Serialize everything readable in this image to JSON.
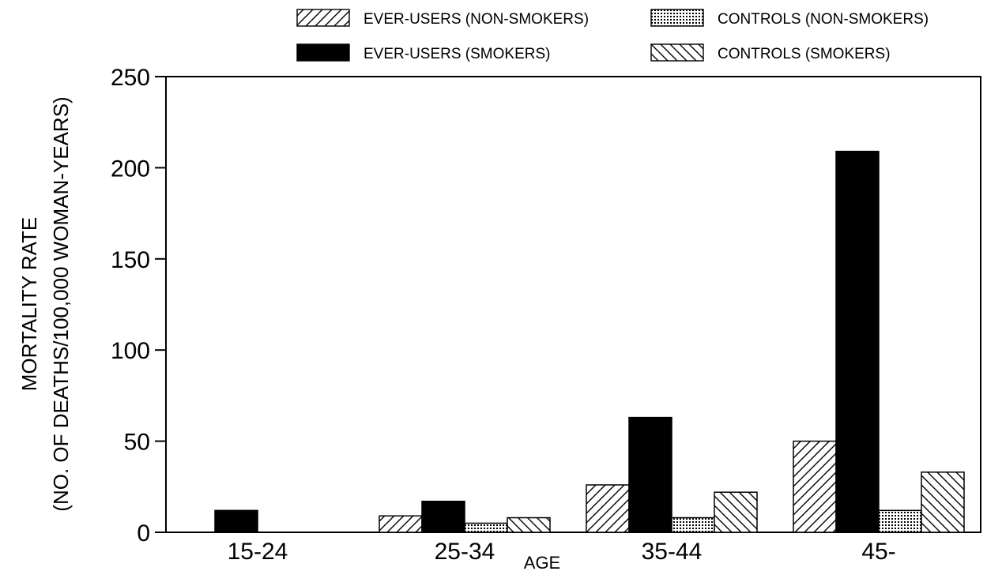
{
  "chart_data": {
    "type": "bar",
    "xlabel": "AGE",
    "ylabel": [
      "MORTALITY RATE",
      "(NO. OF DEATHS/100,000 WOMAN-YEARS)"
    ],
    "categories": [
      "15-24",
      "25-34",
      "35-44",
      "45-"
    ],
    "ylim": [
      0,
      250
    ],
    "yticks": [
      0,
      50,
      100,
      150,
      200,
      250
    ],
    "grid": false,
    "legend_position": "top",
    "series": [
      {
        "name": "EVER-USERS (NON-SMOKERS)",
        "pattern": "hatch-forward",
        "values": [
          0,
          9,
          26,
          50
        ]
      },
      {
        "name": "EVER-USERS (SMOKERS)",
        "pattern": "solid-black",
        "values": [
          12,
          17,
          63,
          209
        ]
      },
      {
        "name": "CONTROLS (NON-SMOKERS)",
        "pattern": "dotted-grid",
        "values": [
          0,
          5,
          8,
          12
        ]
      },
      {
        "name": "CONTROLS (SMOKERS)",
        "pattern": "hatch-backward",
        "values": [
          0,
          8,
          22,
          33
        ]
      }
    ],
    "colors": {
      "ink": "#000000",
      "fill": "#ffffff"
    }
  }
}
